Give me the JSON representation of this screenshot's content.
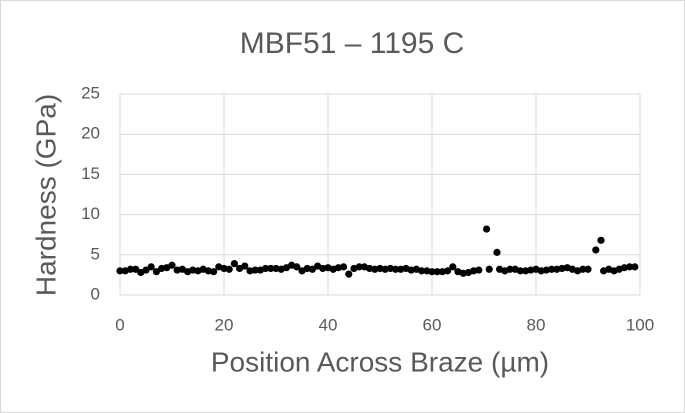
{
  "chart_data": {
    "type": "scatter",
    "title": "MBF51 – 1195 C",
    "x_label": "Position Across Braze (µm)",
    "y_label": "Hardness (GPa)",
    "xlim": [
      0,
      100
    ],
    "xticks": [
      0,
      20,
      40,
      60,
      80,
      100
    ],
    "ylim": [
      0,
      25
    ],
    "yticks": [
      0,
      5,
      10,
      15,
      20,
      25
    ],
    "grid": true,
    "series": [
      {
        "color": "#000000",
        "x": [
          0,
          1,
          2,
          3,
          4,
          5,
          6,
          7,
          8,
          9,
          10,
          11,
          12,
          13,
          14,
          15,
          16,
          17,
          18,
          19,
          20,
          21,
          22,
          23,
          24,
          25,
          26,
          27,
          28,
          29,
          30,
          31,
          32,
          33,
          34,
          35,
          36,
          37,
          38,
          39,
          40,
          41,
          42,
          43,
          44,
          45,
          46,
          47,
          48,
          49,
          50,
          51,
          52,
          53,
          54,
          55,
          56,
          57,
          58,
          59,
          60,
          61,
          62,
          63,
          64,
          65,
          66,
          67,
          68,
          69,
          70.5,
          71,
          72.5,
          73,
          74,
          75,
          76,
          77,
          78,
          79,
          80,
          81,
          82,
          83,
          84,
          85,
          86,
          87,
          88,
          89,
          90,
          91.5,
          92.5,
          93,
          94,
          95,
          96,
          97,
          98,
          99
        ],
        "values": [
          3.0,
          3.0,
          3.2,
          3.2,
          2.8,
          3.1,
          3.5,
          2.9,
          3.3,
          3.4,
          3.7,
          3.1,
          3.2,
          2.9,
          3.1,
          3.0,
          3.2,
          3.0,
          2.9,
          3.5,
          3.3,
          3.2,
          3.9,
          3.3,
          3.6,
          3.0,
          3.1,
          3.1,
          3.3,
          3.3,
          3.3,
          3.2,
          3.4,
          3.7,
          3.5,
          3.0,
          3.3,
          3.2,
          3.6,
          3.3,
          3.4,
          3.2,
          3.4,
          3.5,
          2.6,
          3.3,
          3.5,
          3.5,
          3.3,
          3.2,
          3.3,
          3.2,
          3.3,
          3.2,
          3.2,
          3.3,
          3.1,
          3.2,
          3.0,
          3.0,
          2.9,
          2.9,
          2.9,
          3.0,
          3.5,
          2.9,
          2.7,
          2.8,
          3.0,
          3.1,
          8.2,
          3.2,
          5.3,
          3.2,
          3.0,
          3.2,
          3.2,
          3.0,
          3.0,
          3.1,
          3.2,
          3.0,
          3.1,
          3.2,
          3.2,
          3.3,
          3.4,
          3.2,
          3.0,
          3.2,
          3.2,
          5.6,
          6.8,
          3.0,
          3.2,
          3.0,
          3.2,
          3.4,
          3.5,
          3.5
        ]
      }
    ]
  }
}
